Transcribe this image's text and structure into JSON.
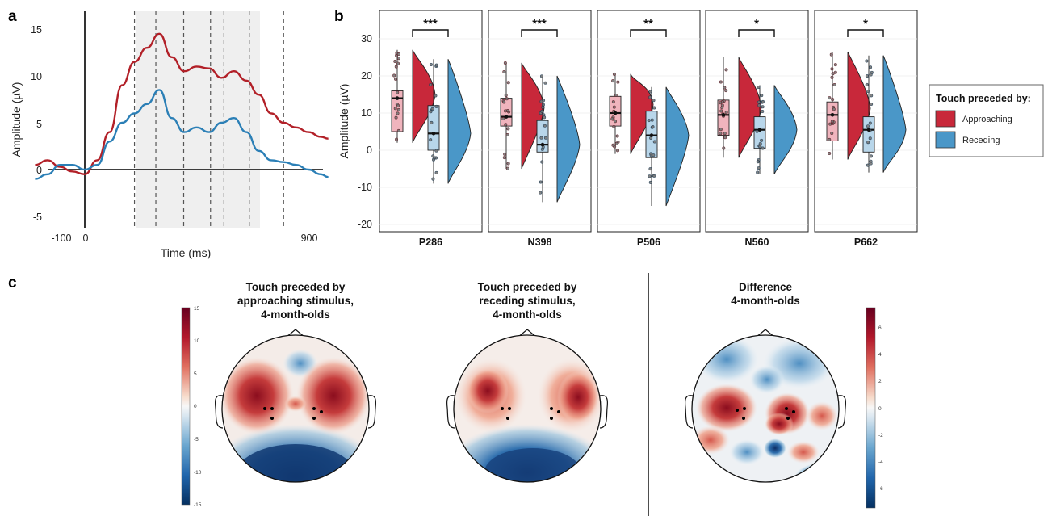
{
  "panels": {
    "a": "a",
    "b": "b",
    "c": "c"
  },
  "panel_a": {
    "xlabel": "Time (ms)",
    "ylabel": "Amplitude (µV)",
    "x_ticks": [
      "-100",
      "0",
      "900"
    ],
    "y_ticks": [
      "15",
      "10",
      "5",
      "0",
      "-5"
    ]
  },
  "panel_b": {
    "ylabel": "Amplitude (µV)",
    "y_ticks": [
      "30",
      "20",
      "10",
      "0",
      "-10",
      "-20"
    ]
  },
  "legend": {
    "title": "Touch preceded by:",
    "items": [
      {
        "label": "Approaching",
        "color": "#c8283a"
      },
      {
        "label": "Receding",
        "color": "#4a97c8"
      }
    ]
  },
  "panel_c": {
    "maps": [
      {
        "title_lines": [
          "Touch preceded by",
          "approaching stimulus,",
          "4-month-olds"
        ]
      },
      {
        "title_lines": [
          "Touch preceded by",
          "receding stimulus,",
          "4-month-olds"
        ]
      },
      {
        "title_lines": [
          "Difference",
          "4-month-olds"
        ]
      }
    ],
    "colorbar_left": {
      "ticks": [
        "15",
        "10",
        "5",
        "0",
        "-5",
        "-10",
        "-15"
      ]
    },
    "colorbar_right": {
      "ticks": [
        "6",
        "4",
        "2",
        "0",
        "-2",
        "-4",
        "-6"
      ]
    }
  },
  "chart_data": [
    {
      "type": "line",
      "xlabel": "Time (ms)",
      "ylabel": "Amplitude (µV)",
      "xlim": [
        -200,
        1000
      ],
      "ylim": [
        -8,
        17
      ],
      "shaded_window_ms": [
        200,
        800
      ],
      "component_lines_ms": [
        286,
        398,
        506,
        560,
        662
      ],
      "series": [
        {
          "color": "#b22028",
          "x": [
            -200,
            -150,
            -100,
            -50,
            0,
            50,
            100,
            150,
            200,
            250,
            300,
            350,
            400,
            450,
            500,
            550,
            600,
            650,
            700,
            750,
            800,
            850,
            900,
            950,
            980
          ],
          "y": [
            0.5,
            1,
            0.3,
            -0.2,
            -0.5,
            1,
            4,
            9,
            11.5,
            13,
            14.5,
            12,
            10.5,
            11,
            10.8,
            9.8,
            10.5,
            9.5,
            8,
            6,
            5,
            4.5,
            4,
            3.5,
            3.3
          ]
        },
        {
          "color": "#2b7fb6",
          "x": [
            -200,
            -150,
            -100,
            -50,
            0,
            50,
            100,
            150,
            200,
            250,
            300,
            350,
            400,
            450,
            500,
            550,
            600,
            650,
            700,
            750,
            800,
            850,
            900,
            950,
            980
          ],
          "y": [
            -1,
            -0.5,
            0.5,
            0.5,
            0,
            0.5,
            3,
            5,
            6,
            7,
            8.5,
            5.5,
            4,
            4.5,
            4,
            5,
            5.5,
            4,
            2,
            1,
            0.8,
            0.5,
            0,
            -0.5,
            -0.8
          ]
        }
      ]
    },
    {
      "type": "violin_box",
      "ylabel": "Amplitude (µV)",
      "ylim": [
        -22,
        35
      ],
      "groups": [
        {
          "component": "P286",
          "significance": "***",
          "approaching": {
            "min": 2,
            "q1": 5,
            "median": 14,
            "q3": 16,
            "max": 27
          },
          "receding": {
            "min": -9,
            "q1": 0,
            "median": 4.5,
            "q3": 12,
            "max": 24.5
          }
        },
        {
          "component": "N398",
          "significance": "***",
          "approaching": {
            "min": -5,
            "q1": 6.5,
            "median": 9,
            "q3": 14,
            "max": 23.5
          },
          "receding": {
            "min": -14,
            "q1": -0.5,
            "median": 1.5,
            "q3": 8,
            "max": 20
          }
        },
        {
          "component": "P506",
          "significance": "**",
          "approaching": {
            "min": -1,
            "q1": 6.5,
            "median": 10,
            "q3": 14.5,
            "max": 20.5
          },
          "receding": {
            "min": -15,
            "q1": -2,
            "median": 4,
            "q3": 10.5,
            "max": 17
          }
        },
        {
          "component": "N560",
          "significance": "*",
          "approaching": {
            "min": -2,
            "q1": 4,
            "median": 9.5,
            "q3": 13.5,
            "max": 25
          },
          "receding": {
            "min": -6.5,
            "q1": 0.5,
            "median": 5.5,
            "q3": 9,
            "max": 17.5
          }
        },
        {
          "component": "P662",
          "significance": "*",
          "approaching": {
            "min": -2.5,
            "q1": 2.5,
            "median": 9.5,
            "q3": 13,
            "max": 26.5
          },
          "receding": {
            "min": -6,
            "q1": -0.5,
            "median": 5.5,
            "q3": 9,
            "max": 25.5
          }
        }
      ]
    }
  ]
}
